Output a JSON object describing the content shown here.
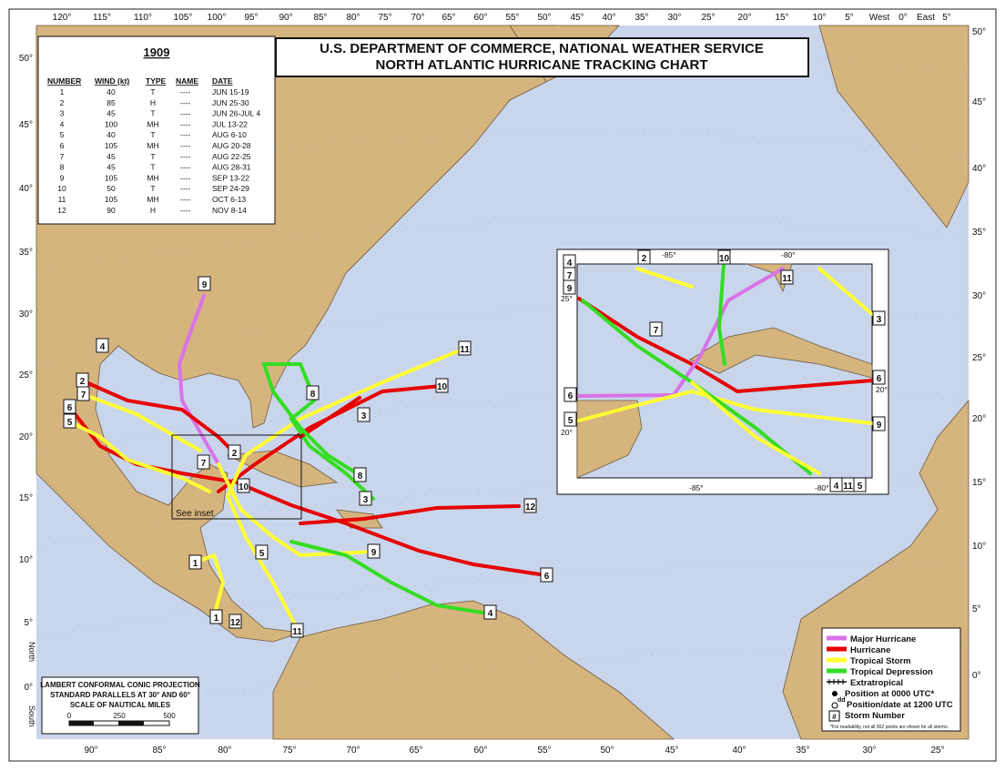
{
  "header": {
    "title": "U.S. DEPARTMENT OF COMMERCE, NATIONAL WEATHER SERVICE",
    "subtitle": "NORTH ATLANTIC HURRICANE TRACKING CHART"
  },
  "season": {
    "year": "1909",
    "columns": [
      "NUMBER",
      "WIND (kt)",
      "TYPE",
      "NAME",
      "DATE"
    ],
    "rows": [
      [
        "1",
        "40",
        "T",
        "----",
        "JUN 15-19"
      ],
      [
        "2",
        "85",
        "H",
        "----",
        "JUN 25-30"
      ],
      [
        "3",
        "45",
        "T",
        "----",
        "JUN 26-JUL 4"
      ],
      [
        "4",
        "100",
        "MH",
        "----",
        "JUL 13-22"
      ],
      [
        "5",
        "40",
        "T",
        "----",
        "AUG 6-10"
      ],
      [
        "6",
        "105",
        "MH",
        "----",
        "AUG 20-28"
      ],
      [
        "7",
        "45",
        "T",
        "----",
        "AUG 22-25"
      ],
      [
        "8",
        "45",
        "T",
        "----",
        "AUG 28-31"
      ],
      [
        "9",
        "105",
        "MH",
        "----",
        "SEP 13-22"
      ],
      [
        "10",
        "50",
        "T",
        "----",
        "SEP 24-29"
      ],
      [
        "11",
        "105",
        "MH",
        "----",
        "OCT 6-13"
      ],
      [
        "12",
        "90",
        "H",
        "----",
        "NOV 8-14"
      ]
    ]
  },
  "top_longitudes": [
    "120°",
    "115°",
    "110°",
    "105°",
    "100°",
    "95°",
    "90°",
    "85°",
    "80°",
    "75°",
    "70°",
    "65°",
    "60°",
    "55°",
    "50°",
    "45°",
    "40°",
    "35°",
    "30°",
    "25°",
    "20°",
    "15°",
    "10°",
    "5°",
    "West",
    "0°",
    "East",
    "5°"
  ],
  "bottom_longitudes": [
    "90°",
    "85°",
    "80°",
    "75°",
    "70°",
    "65°",
    "60°",
    "55°",
    "50°",
    "45°",
    "40°",
    "35°",
    "30°",
    "25°"
  ],
  "left_latitudes": [
    "50°",
    "45°",
    "40°",
    "35°",
    "30°",
    "25°",
    "20°",
    "15°",
    "10°",
    "5°",
    "0°"
  ],
  "right_latitudes": [
    "50°",
    "45°",
    "40°",
    "35°",
    "30°",
    "25°",
    "20°",
    "15°",
    "10°",
    "5°",
    "0°"
  ],
  "hemisphere": {
    "north": "North",
    "south": "South"
  },
  "storm_labels": [
    "9",
    "4",
    "2",
    "7",
    "6",
    "5",
    "11",
    "10",
    "3",
    "8",
    "8",
    "3",
    "12",
    "6",
    "9",
    "4",
    "11",
    "1",
    "1",
    "12",
    "5",
    "7",
    "2",
    "10"
  ],
  "see_inset": "See inset",
  "inset": {
    "storm_labels": [
      "4",
      "7",
      "9",
      "2",
      "10",
      "11",
      "3",
      "7",
      "6",
      "9",
      "5",
      "6",
      "4",
      "11",
      "5"
    ],
    "coords": [
      "-85°",
      "-80°",
      "25°",
      "20°",
      "20°",
      "-85°",
      "-80°"
    ]
  },
  "projection": {
    "lines": [
      "LAMBERT CONFORMAL CONIC PROJECTION",
      "STANDARD PARALLELS AT 30° AND 60°",
      "SCALE OF NAUTICAL MILES"
    ],
    "scale": [
      "0",
      "250",
      "500"
    ]
  },
  "legend": {
    "items": [
      "Major Hurricane",
      "Hurricane",
      "Tropical Storm",
      "Tropical Depression",
      "Extratropical"
    ],
    "colors": [
      "#d873e8",
      "#e60000",
      "#ffff33",
      "#33dd22",
      "#000000"
    ],
    "markers": [
      "Position at 0000 UTC*",
      "Position/date at 1200 UTC",
      "Storm Number"
    ],
    "marker_symbols": [
      "dd",
      "#"
    ],
    "footnote": "*For readability, not all 00Z points are shown for all storms."
  }
}
